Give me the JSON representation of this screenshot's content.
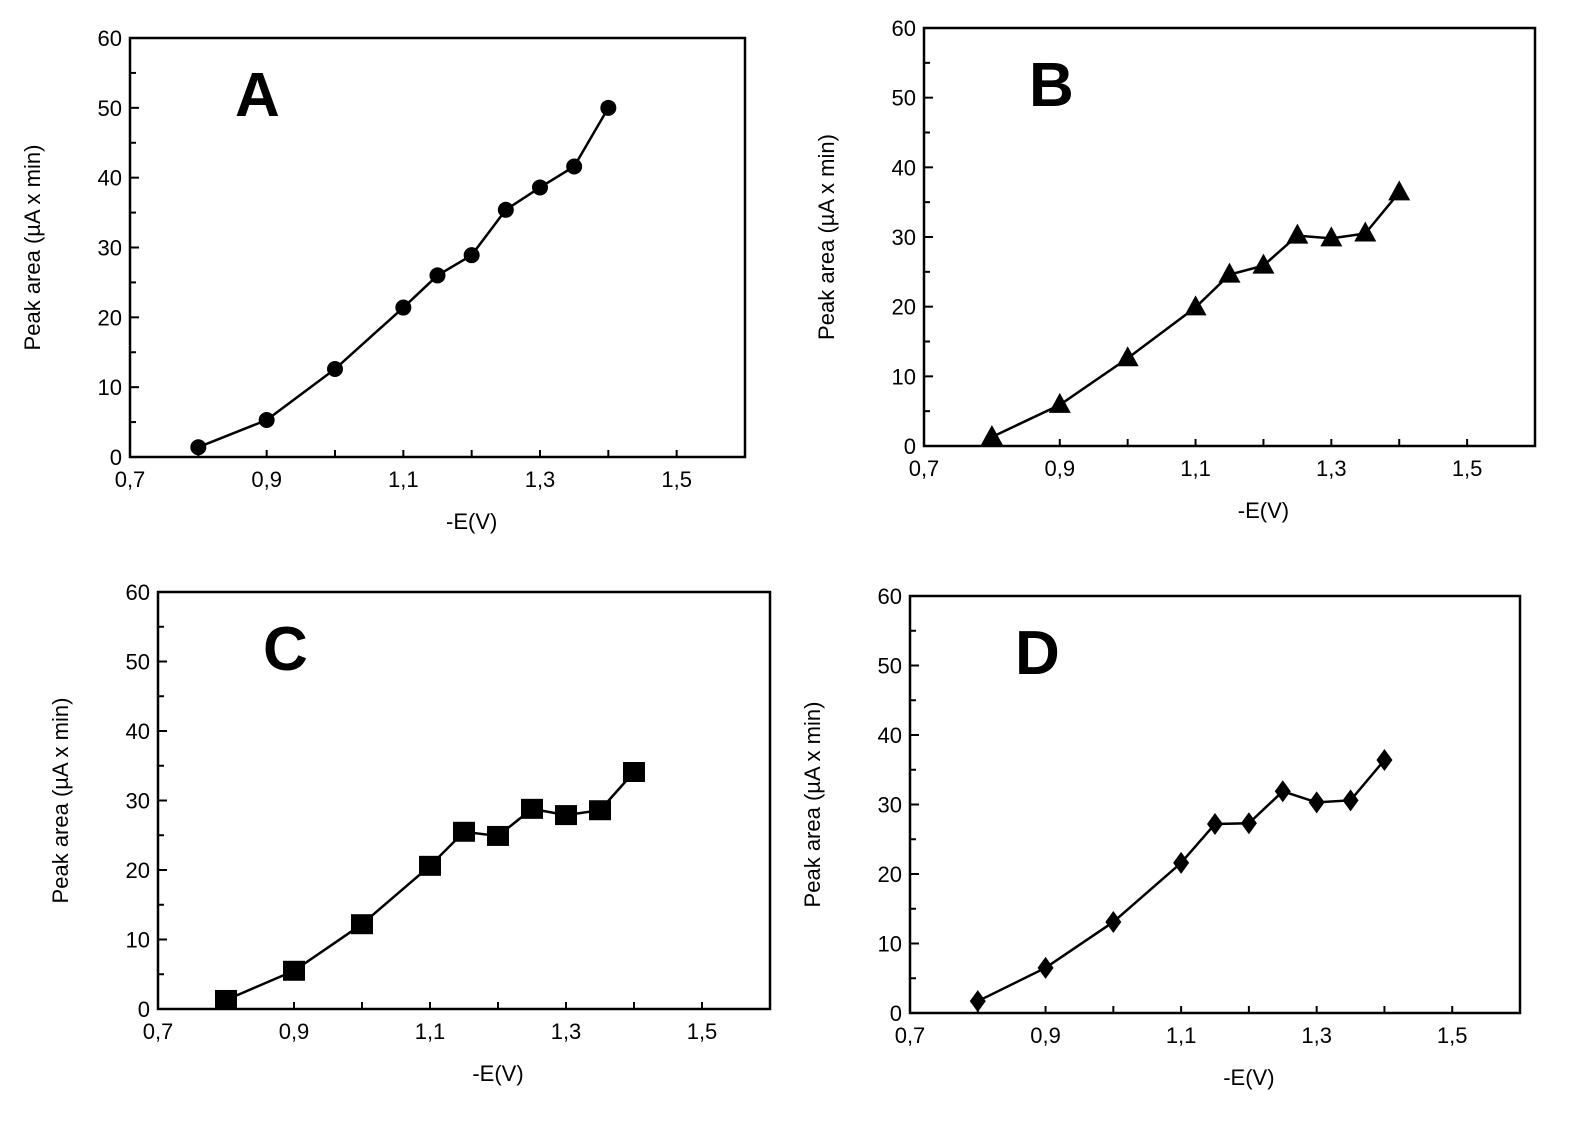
{
  "chart_data": [
    {
      "type": "line",
      "panel_label": "A",
      "marker": "circle",
      "xlabel": "-E(V)",
      "ylabel": "Peak area (µA x min)",
      "xlim": [
        0.7,
        1.6
      ],
      "ylim": [
        0,
        60
      ],
      "xticks": [
        "0,7",
        "0,9",
        "1,1",
        "1,3",
        "1,5"
      ],
      "yticks": [
        "0",
        "10",
        "20",
        "30",
        "40",
        "50",
        "60"
      ],
      "x": [
        0.8,
        0.9,
        1.0,
        1.1,
        1.15,
        1.2,
        1.25,
        1.3,
        1.35,
        1.4
      ],
      "y": [
        1.4,
        5.3,
        12.6,
        21.4,
        26.0,
        28.9,
        35.4,
        38.6,
        41.6,
        50.0
      ]
    },
    {
      "type": "line",
      "panel_label": "B",
      "marker": "triangle",
      "xlabel": "-E(V)",
      "ylabel": "Peak area (µA x min)",
      "xlim": [
        0.7,
        1.6
      ],
      "ylim": [
        0,
        60
      ],
      "xticks": [
        "0,7",
        "0,9",
        "1,1",
        "1,3",
        "1,5"
      ],
      "yticks": [
        "0",
        "10",
        "20",
        "30",
        "40",
        "50",
        "60"
      ],
      "x": [
        0.8,
        0.9,
        1.0,
        1.1,
        1.15,
        1.2,
        1.25,
        1.3,
        1.35,
        1.4
      ],
      "y": [
        1.3,
        5.9,
        12.6,
        19.9,
        24.6,
        25.9,
        30.2,
        29.8,
        30.5,
        36.4
      ]
    },
    {
      "type": "line",
      "panel_label": "C",
      "marker": "square",
      "xlabel": "-E(V)",
      "ylabel": "Peak area (µA x min)",
      "xlim": [
        0.7,
        1.6
      ],
      "ylim": [
        0,
        60
      ],
      "xticks": [
        "0,7",
        "0,9",
        "1,1",
        "1,3",
        "1,5"
      ],
      "yticks": [
        "0",
        "10",
        "20",
        "30",
        "40",
        "50",
        "60"
      ],
      "x": [
        0.8,
        0.9,
        1.0,
        1.1,
        1.15,
        1.2,
        1.25,
        1.3,
        1.35,
        1.4
      ],
      "y": [
        1.3,
        5.5,
        12.2,
        20.6,
        25.5,
        24.9,
        28.8,
        27.9,
        28.6,
        34.1
      ]
    },
    {
      "type": "line",
      "panel_label": "D",
      "marker": "diamond",
      "xlabel": "-E(V)",
      "ylabel": "Peak area (µA x min)",
      "xlim": [
        0.7,
        1.6
      ],
      "ylim": [
        0,
        60
      ],
      "xticks": [
        "0,7",
        "0,9",
        "1,1",
        "1,3",
        "1,5"
      ],
      "yticks": [
        "0",
        "10",
        "20",
        "30",
        "40",
        "50",
        "60"
      ],
      "x": [
        0.8,
        0.9,
        1.0,
        1.1,
        1.15,
        1.2,
        1.25,
        1.3,
        1.35,
        1.4
      ],
      "y": [
        1.7,
        6.5,
        13.1,
        21.6,
        27.2,
        27.3,
        31.9,
        30.3,
        30.6,
        36.4
      ]
    }
  ]
}
